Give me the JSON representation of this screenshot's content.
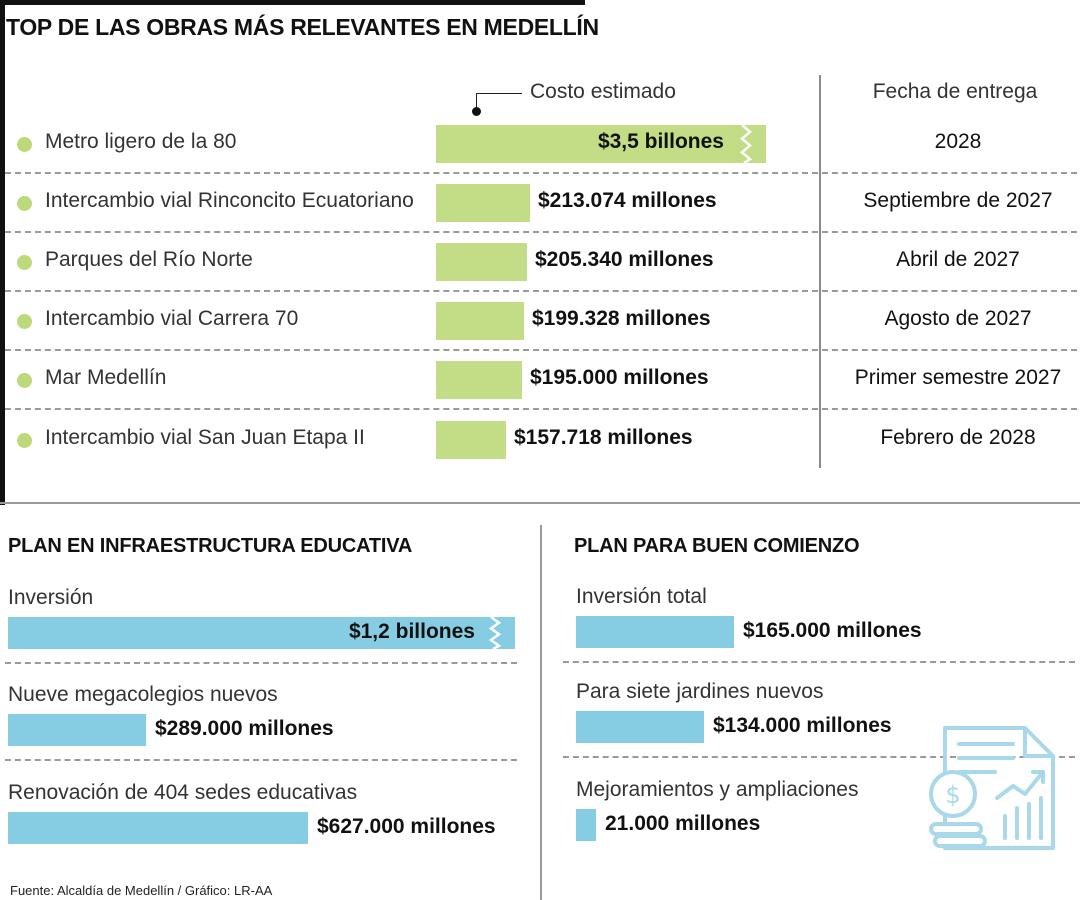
{
  "title": "TOP DE LAS OBRAS MÁS RELEVANTES EN MEDELLÍN",
  "headers": {
    "cost": "Costo estimado",
    "date": "Fecha de entrega"
  },
  "colors": {
    "green_bar": "#c2dd86",
    "green_dot": "#bcd97c",
    "blue_bar": "#86cde4",
    "icon": "#a8d8ea"
  },
  "source": "Fuente: Alcaldía de Medellín / Gráfico: LR-AA",
  "icon_name": "finance-document-icon",
  "chart_data": [
    {
      "type": "bar",
      "title": "TOP DE LAS OBRAS MÁS RELEVANTES EN MEDELLÍN",
      "orientation": "horizontal",
      "categories": [
        "Metro ligero de la 80",
        "Intercambio vial Rinconcito Ecuatoriano",
        "Parques del Río Norte",
        "Intercambio vial Carrera 70",
        "Mar Medellín",
        "Intercambio vial San Juan Etapa II"
      ],
      "values_millones": [
        3500000,
        213074,
        205340,
        199328,
        195000,
        157718
      ],
      "value_labels": [
        "$3,5 billones",
        "$213.074 millones",
        "$205.340 millones",
        "$199.328 millones",
        "$195.000 millones",
        "$157.718 millones"
      ],
      "delivery": [
        "2028",
        "Septiembre de 2027",
        "Abril de 2027",
        "Agosto de 2027",
        "Primer semestre 2027",
        "Febrero de 2028"
      ],
      "broken_bar_index": 0
    },
    {
      "type": "bar",
      "title": "PLAN EN INFRAESTRUCTURA EDUCATIVA",
      "orientation": "horizontal",
      "categories": [
        "Inversión",
        "Nueve megacolegios nuevos",
        "Renovación de 404 sedes educativas"
      ],
      "values_millones": [
        1200000,
        289000,
        627000
      ],
      "value_labels": [
        "$1,2 billones",
        "$289.000 millones",
        "$627.000 millones"
      ],
      "broken_bar_index": 0
    },
    {
      "type": "bar",
      "title": "PLAN PARA BUEN COMIENZO",
      "orientation": "horizontal",
      "categories": [
        "Inversión total",
        "Para siete jardines nuevos",
        "Mejoramientos y ampliaciones"
      ],
      "values_millones": [
        165000,
        134000,
        21000
      ],
      "value_labels": [
        "$165.000 millones",
        "$134.000 millones",
        "21.000 millones"
      ]
    }
  ]
}
